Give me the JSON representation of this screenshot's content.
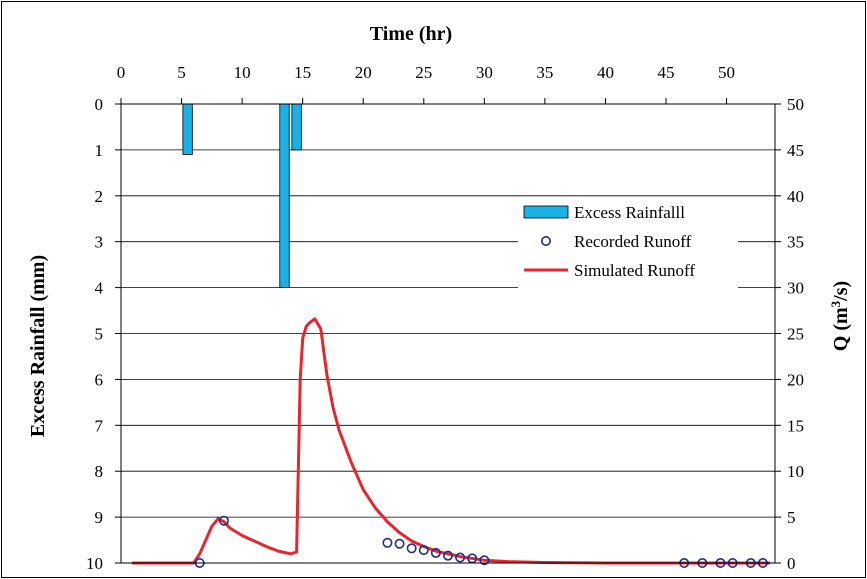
{
  "chart_data": {
    "type": "bar+scatter+line",
    "title": "",
    "x_axis": {
      "label": "Time (hr)",
      "position": "top",
      "range": [
        0,
        54
      ],
      "ticks": [
        0,
        5,
        10,
        15,
        20,
        25,
        30,
        35,
        40,
        45,
        50
      ]
    },
    "y_left": {
      "label": "Excess Rainfall (mm)",
      "range": [
        0,
        10
      ],
      "inverted": true,
      "ticks": [
        0,
        1,
        2,
        3,
        4,
        5,
        6,
        7,
        8,
        9,
        10
      ]
    },
    "y_right": {
      "label_main": "Q (m",
      "label_sup": "3",
      "label_end": "/s)",
      "range": [
        0,
        50
      ],
      "ticks": [
        0,
        5,
        10,
        15,
        20,
        25,
        30,
        35,
        40,
        45,
        50
      ]
    },
    "grid": true,
    "legend_position": "right",
    "series": [
      {
        "name": "Excess Rainfalll",
        "kind": "bar",
        "axis": "left",
        "color": "#1BB1E6",
        "x": [
          5.5,
          13.5,
          14.5
        ],
        "values": [
          1.1,
          4.0,
          1.0
        ]
      },
      {
        "name": "Recorded Runoff",
        "kind": "scatter",
        "axis": "right",
        "color": "#1F2A8A",
        "x": [
          6.5,
          8.5,
          22.0,
          23.0,
          24.0,
          25.0,
          26.0,
          27.0,
          28.0,
          29.0,
          30.0,
          46.5,
          48.0,
          49.5,
          50.5,
          52.0,
          53.0
        ],
        "values": [
          0.0,
          4.6,
          2.2,
          2.1,
          1.6,
          1.4,
          1.1,
          0.8,
          0.6,
          0.5,
          0.3,
          0.0,
          0.0,
          0.0,
          0.0,
          0.0,
          0.0
        ]
      },
      {
        "name": "Simulated Runoff",
        "kind": "line",
        "axis": "right",
        "color": "#E8252D",
        "x": [
          1.0,
          5.0,
          6.0,
          6.5,
          7.0,
          7.5,
          8.0,
          8.5,
          9.0,
          10.0,
          11.0,
          12.0,
          13.0,
          14.0,
          14.5,
          14.8,
          15.0,
          15.3,
          15.6,
          16.0,
          16.5,
          17.0,
          17.5,
          18.0,
          19.0,
          20.0,
          21.0,
          22.0,
          23.0,
          24.0,
          25.0,
          26.0,
          27.0,
          28.0,
          30.0,
          32.0,
          35.0,
          40.0,
          45.0,
          50.0,
          53.5
        ],
        "values": [
          0.0,
          0.0,
          0.0,
          1.0,
          2.5,
          4.0,
          4.8,
          4.5,
          3.8,
          3.0,
          2.4,
          1.8,
          1.3,
          1.0,
          1.2,
          20.0,
          24.5,
          25.8,
          26.2,
          26.6,
          25.5,
          20.5,
          17.0,
          14.5,
          11.0,
          8.0,
          6.0,
          4.5,
          3.3,
          2.4,
          1.8,
          1.3,
          1.0,
          0.7,
          0.3,
          0.15,
          0.05,
          0.0,
          0.0,
          0.0,
          0.0
        ]
      }
    ]
  }
}
